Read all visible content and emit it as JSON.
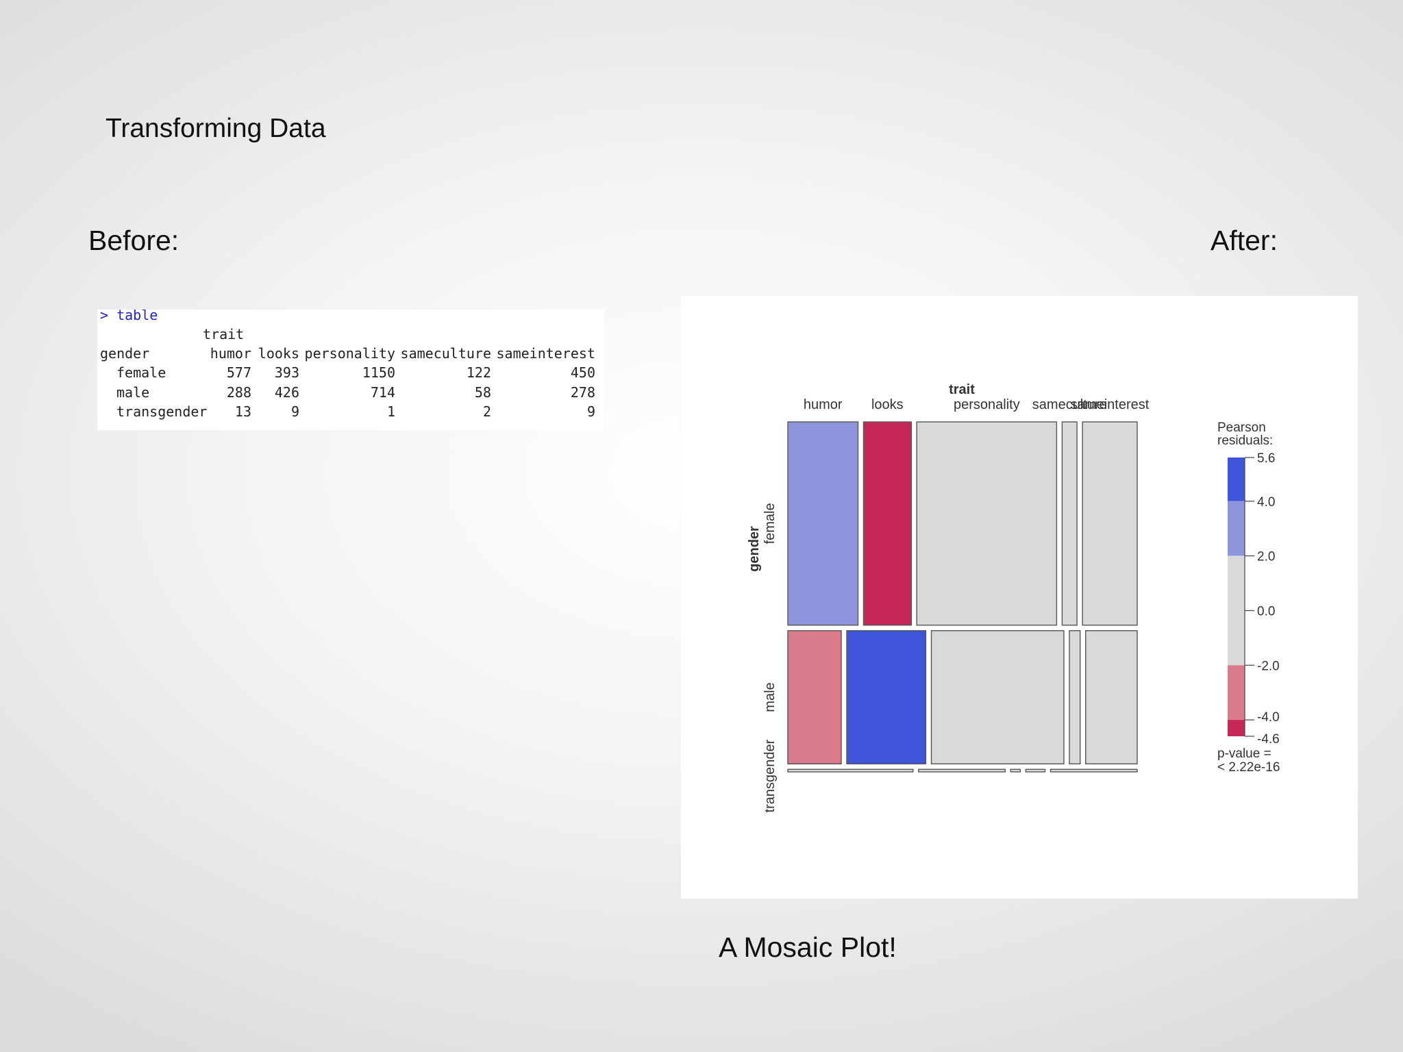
{
  "slide": {
    "title": "Transforming Data",
    "before_label": "Before:",
    "after_label": "After:",
    "caption": "A Mosaic Plot!"
  },
  "console": {
    "command": "> table",
    "column_var": "trait",
    "row_var": "gender",
    "columns": [
      "humor",
      "looks",
      "personality",
      "sameculture",
      "sameinterest"
    ],
    "rows": [
      {
        "label": "female",
        "values": [
          577,
          393,
          1150,
          122,
          450
        ]
      },
      {
        "label": "male",
        "values": [
          288,
          426,
          714,
          58,
          278
        ]
      },
      {
        "label": "transgender",
        "values": [
          13,
          9,
          1,
          2,
          9
        ]
      }
    ]
  },
  "chart_data": {
    "type": "mosaic",
    "column_variable": "trait",
    "row_variable": "gender",
    "columns": [
      "humor",
      "looks",
      "personality",
      "sameculture",
      "sameinterest"
    ],
    "rows": [
      "female",
      "male",
      "transgender"
    ],
    "counts": [
      [
        577,
        393,
        1150,
        122,
        450
      ],
      [
        288,
        426,
        714,
        58,
        278
      ],
      [
        13,
        9,
        1,
        2,
        9
      ]
    ],
    "residual_shading": [
      [
        "light-blue",
        "dark-red",
        "grey",
        "grey",
        "grey"
      ],
      [
        "light-red",
        "dark-blue",
        "grey",
        "grey",
        "grey"
      ],
      [
        "grey",
        "grey",
        "grey",
        "grey",
        "grey"
      ]
    ],
    "legend": {
      "title": "Pearson residuals:",
      "ticks": [
        "5.6",
        "4.0",
        "2.0",
        "0.0",
        "-2.0",
        "-4.0",
        "-4.6"
      ],
      "range": [
        -4.6,
        5.6
      ],
      "breaks": [
        -4.6,
        -4,
        -2,
        2,
        4,
        5.6
      ],
      "pvalue": "p-value =",
      "pvalue_value": "< 2.22e-16",
      "placement": "right"
    },
    "colors": {
      "dark_blue": "#3f55dc",
      "light_blue": "#8d95dc",
      "grey": "#d9d9da",
      "light_red": "#d97b8a",
      "dark_red": "#c62857",
      "border": "#555555"
    }
  }
}
